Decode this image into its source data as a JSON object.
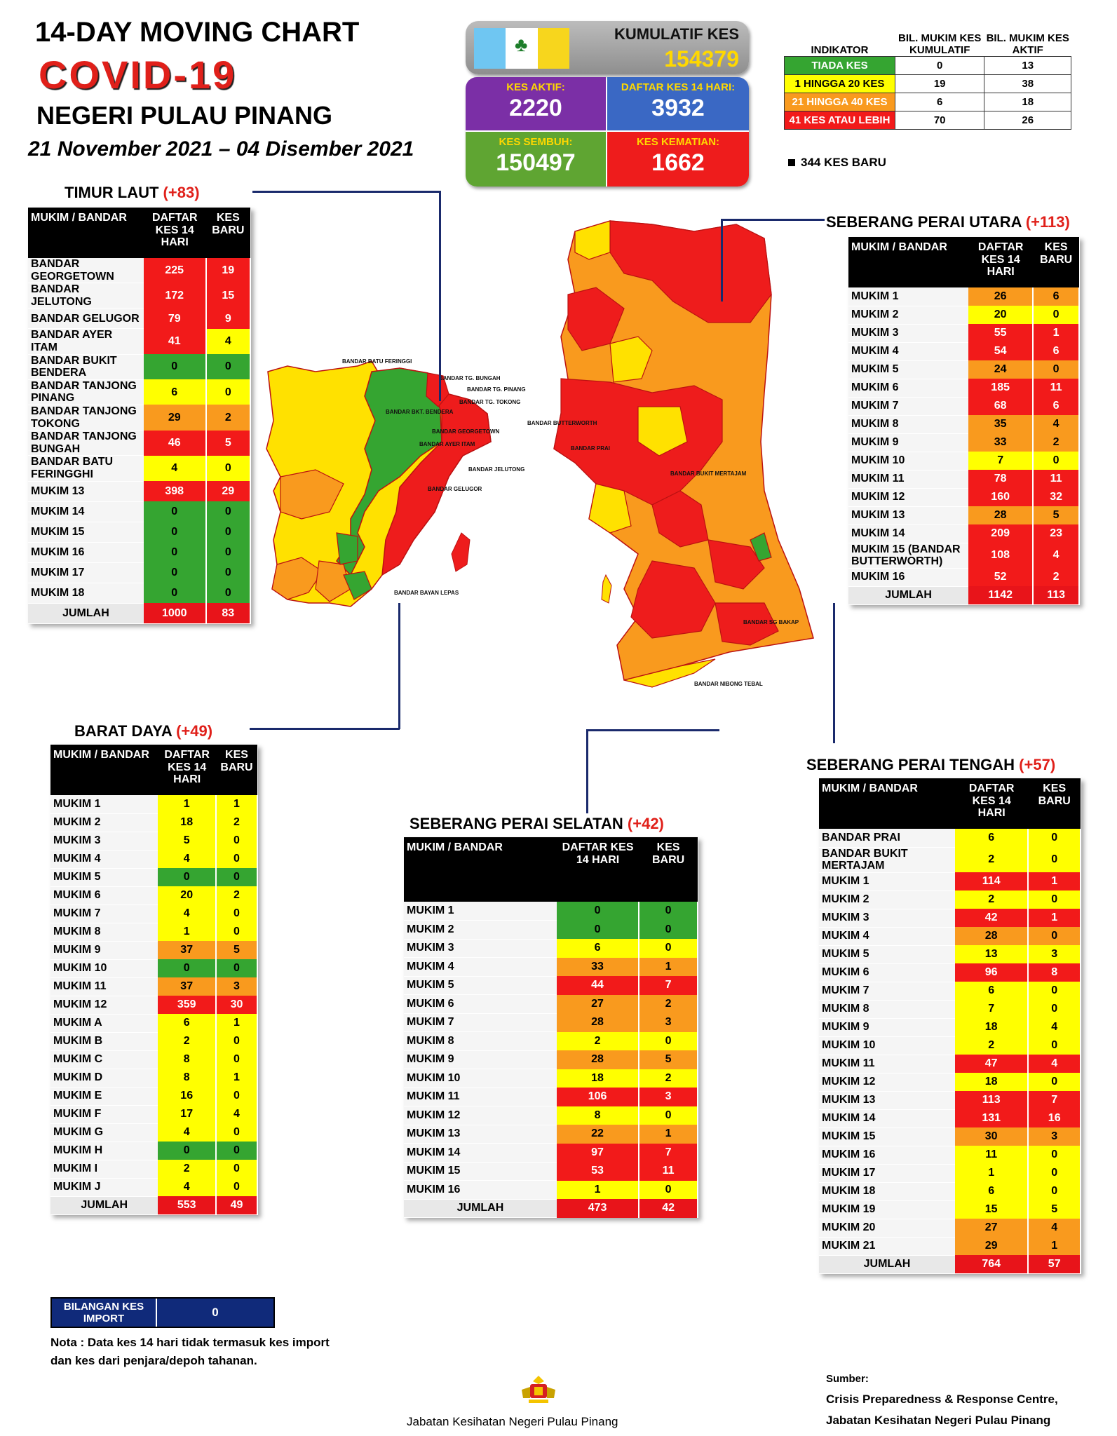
{
  "header": {
    "title": "14-DAY MOVING CHART",
    "covid": "COVID-19",
    "state": "NEGERI PULAU PINANG",
    "date_range": "21 November 2021 – 04 Disember 2021"
  },
  "stats": {
    "kumulatif_label": "KUMULATIF KES",
    "kumulatif_value": "154379",
    "aktif_label": "KES AKTIF:",
    "aktif_value": "2220",
    "daftar_label": "DAFTAR KES 14 HARI:",
    "daftar_value": "3932",
    "sembuh_label": "KES SEMBUH:",
    "sembuh_value": "150497",
    "kematian_label": "KES KEMATIAN:",
    "kematian_value": "1662"
  },
  "legend": {
    "col1": "INDIKATOR",
    "col2": "BIL. MUKIM KES KUMULATIF",
    "col3": "BIL. MUKIM KES AKTIF",
    "rows": [
      {
        "label": "TIADA KES",
        "a": "0",
        "b": "13",
        "color": "#35a531"
      },
      {
        "label": "1 HINGGA 20 KES",
        "a": "19",
        "b": "38",
        "color": "#ffff00"
      },
      {
        "label": "21 HINGGA 40 KES",
        "a": "6",
        "b": "18",
        "color": "#f99a1e"
      },
      {
        "label": "41 KES ATAU LEBIH",
        "a": "70",
        "b": "26",
        "color": "#f21a1a"
      }
    ],
    "new_cases": "344 KES BARU"
  },
  "timur_laut": {
    "title": "TIMUR LAUT",
    "plus": "(+83)",
    "h1": "MUKIM / BANDAR",
    "h2": "DAFTAR KES 14 HARI",
    "h3": "KES BARU",
    "rows": [
      [
        "BANDAR GEORGETOWN",
        "225",
        "19",
        "r",
        "r"
      ],
      [
        "BANDAR JELUTONG",
        "172",
        "15",
        "r",
        "r"
      ],
      [
        "BANDAR GELUGOR",
        "79",
        "9",
        "r",
        "r"
      ],
      [
        "BANDAR AYER ITAM",
        "41",
        "4",
        "r",
        "y"
      ],
      [
        "BANDAR BUKIT BENDERA",
        "0",
        "0",
        "g",
        "g"
      ],
      [
        "BANDAR TANJONG PINANG",
        "6",
        "0",
        "y",
        "y"
      ],
      [
        "BANDAR TANJONG TOKONG",
        "29",
        "2",
        "o",
        "o"
      ],
      [
        "BANDAR TANJONG BUNGAH",
        "46",
        "5",
        "r",
        "r"
      ],
      [
        "BANDAR BATU FERINGGHI",
        "4",
        "0",
        "y",
        "y"
      ],
      [
        "MUKIM 13",
        "398",
        "29",
        "r",
        "r"
      ],
      [
        "MUKIM 14",
        "0",
        "0",
        "g",
        "g"
      ],
      [
        "MUKIM 15",
        "0",
        "0",
        "g",
        "g"
      ],
      [
        "MUKIM 16",
        "0",
        "0",
        "g",
        "g"
      ],
      [
        "MUKIM 17",
        "0",
        "0",
        "g",
        "g"
      ],
      [
        "MUKIM 18",
        "0",
        "0",
        "g",
        "g"
      ]
    ],
    "total_label": "JUMLAH",
    "total_a": "1000",
    "total_b": "83"
  },
  "barat_daya": {
    "title": "BARAT DAYA",
    "plus": "(+49)",
    "h1": "MUKIM / BANDAR",
    "h2": "DAFTAR KES 14 HARI",
    "h3": "KES BARU",
    "rows": [
      [
        "MUKIM 1",
        "1",
        "1",
        "y",
        "y"
      ],
      [
        "MUKIM 2",
        "18",
        "2",
        "y",
        "y"
      ],
      [
        "MUKIM 3",
        "5",
        "0",
        "y",
        "y"
      ],
      [
        "MUKIM 4",
        "4",
        "0",
        "y",
        "y"
      ],
      [
        "MUKIM 5",
        "0",
        "0",
        "g",
        "g"
      ],
      [
        "MUKIM 6",
        "20",
        "2",
        "y",
        "y"
      ],
      [
        "MUKIM 7",
        "4",
        "0",
        "y",
        "y"
      ],
      [
        "MUKIM 8",
        "1",
        "0",
        "y",
        "y"
      ],
      [
        "MUKIM 9",
        "37",
        "5",
        "o",
        "o"
      ],
      [
        "MUKIM 10",
        "0",
        "0",
        "g",
        "g"
      ],
      [
        "MUKIM 11",
        "37",
        "3",
        "o",
        "o"
      ],
      [
        "MUKIM 12",
        "359",
        "30",
        "r",
        "r"
      ],
      [
        "MUKIM A",
        "6",
        "1",
        "y",
        "y"
      ],
      [
        "MUKIM B",
        "2",
        "0",
        "y",
        "y"
      ],
      [
        "MUKIM C",
        "8",
        "0",
        "y",
        "y"
      ],
      [
        "MUKIM D",
        "8",
        "1",
        "y",
        "y"
      ],
      [
        "MUKIM E",
        "16",
        "0",
        "y",
        "y"
      ],
      [
        "MUKIM F",
        "17",
        "4",
        "y",
        "y"
      ],
      [
        "MUKIM G",
        "4",
        "0",
        "y",
        "y"
      ],
      [
        "MUKIM H",
        "0",
        "0",
        "g",
        "g"
      ],
      [
        "MUKIM I",
        "2",
        "0",
        "y",
        "y"
      ],
      [
        "MUKIM J",
        "4",
        "0",
        "y",
        "y"
      ]
    ],
    "total_label": "JUMLAH",
    "total_a": "553",
    "total_b": "49"
  },
  "spu": {
    "title": "SEBERANG PERAI UTARA",
    "plus": "(+113)",
    "h1": "MUKIM / BANDAR",
    "h2": "DAFTAR KES 14 HARI",
    "h3": "KES BARU",
    "rows": [
      [
        "MUKIM 1",
        "26",
        "6",
        "o",
        "o"
      ],
      [
        "MUKIM 2",
        "20",
        "0",
        "y",
        "y"
      ],
      [
        "MUKIM 3",
        "55",
        "1",
        "r",
        "r"
      ],
      [
        "MUKIM 4",
        "54",
        "6",
        "r",
        "r"
      ],
      [
        "MUKIM 5",
        "24",
        "0",
        "o",
        "o"
      ],
      [
        "MUKIM 6",
        "185",
        "11",
        "r",
        "r"
      ],
      [
        "MUKIM 7",
        "68",
        "6",
        "r",
        "r"
      ],
      [
        "MUKIM 8",
        "35",
        "4",
        "o",
        "o"
      ],
      [
        "MUKIM 9",
        "33",
        "2",
        "o",
        "o"
      ],
      [
        "MUKIM 10",
        "7",
        "0",
        "y",
        "y"
      ],
      [
        "MUKIM 11",
        "78",
        "11",
        "r",
        "r"
      ],
      [
        "MUKIM 12",
        "160",
        "32",
        "r",
        "r"
      ],
      [
        "MUKIM 13",
        "28",
        "5",
        "o",
        "o"
      ],
      [
        "MUKIM 14",
        "209",
        "23",
        "r",
        "r"
      ],
      [
        "MUKIM 15 (BANDAR BUTTERWORTH)",
        "108",
        "4",
        "r",
        "r"
      ],
      [
        "MUKIM 16",
        "52",
        "2",
        "r",
        "r"
      ]
    ],
    "total_label": "JUMLAH",
    "total_a": "1142",
    "total_b": "113"
  },
  "sps": {
    "title": "SEBERANG PERAI SELATAN",
    "plus": "(+42)",
    "h1": "MUKIM / BANDAR",
    "h2": "DAFTAR KES 14 HARI",
    "h3": "KES BARU",
    "rows": [
      [
        "MUKIM 1",
        "0",
        "0",
        "g",
        "g"
      ],
      [
        "MUKIM 2",
        "0",
        "0",
        "g",
        "g"
      ],
      [
        "MUKIM 3",
        "6",
        "0",
        "y",
        "y"
      ],
      [
        "MUKIM 4",
        "33",
        "1",
        "o",
        "o"
      ],
      [
        "MUKIM 5",
        "44",
        "7",
        "r",
        "r"
      ],
      [
        "MUKIM 6",
        "27",
        "2",
        "o",
        "o"
      ],
      [
        "MUKIM 7",
        "28",
        "3",
        "o",
        "o"
      ],
      [
        "MUKIM 8",
        "2",
        "0",
        "y",
        "y"
      ],
      [
        "MUKIM 9",
        "28",
        "5",
        "o",
        "o"
      ],
      [
        "MUKIM 10",
        "18",
        "2",
        "y",
        "y"
      ],
      [
        "MUKIM 11",
        "106",
        "3",
        "r",
        "r"
      ],
      [
        "MUKIM 12",
        "8",
        "0",
        "y",
        "y"
      ],
      [
        "MUKIM 13",
        "22",
        "1",
        "o",
        "o"
      ],
      [
        "MUKIM 14",
        "97",
        "7",
        "r",
        "r"
      ],
      [
        "MUKIM 15",
        "53",
        "11",
        "r",
        "r"
      ],
      [
        "MUKIM 16",
        "1",
        "0",
        "y",
        "y"
      ]
    ],
    "total_label": "JUMLAH",
    "total_a": "473",
    "total_b": "42"
  },
  "spt": {
    "title": "SEBERANG PERAI TENGAH",
    "plus": "(+57)",
    "h1": "MUKIM / BANDAR",
    "h2": "DAFTAR KES 14 HARI",
    "h3": "KES BARU",
    "rows": [
      [
        "BANDAR PRAI",
        "6",
        "0",
        "y",
        "y"
      ],
      [
        "BANDAR BUKIT MERTAJAM",
        "2",
        "0",
        "y",
        "y"
      ],
      [
        "MUKIM 1",
        "114",
        "1",
        "r",
        "r"
      ],
      [
        "MUKIM 2",
        "2",
        "0",
        "y",
        "y"
      ],
      [
        "MUKIM 3",
        "42",
        "1",
        "r",
        "r"
      ],
      [
        "MUKIM 4",
        "28",
        "0",
        "o",
        "o"
      ],
      [
        "MUKIM 5",
        "13",
        "3",
        "y",
        "y"
      ],
      [
        "MUKIM 6",
        "96",
        "8",
        "r",
        "r"
      ],
      [
        "MUKIM 7",
        "6",
        "0",
        "y",
        "y"
      ],
      [
        "MUKIM 8",
        "7",
        "0",
        "y",
        "y"
      ],
      [
        "MUKIM 9",
        "18",
        "4",
        "y",
        "y"
      ],
      [
        "MUKIM 10",
        "2",
        "0",
        "y",
        "y"
      ],
      [
        "MUKIM 11",
        "47",
        "4",
        "r",
        "r"
      ],
      [
        "MUKIM 12",
        "18",
        "0",
        "y",
        "y"
      ],
      [
        "MUKIM 13",
        "113",
        "7",
        "r",
        "r"
      ],
      [
        "MUKIM 14",
        "131",
        "16",
        "r",
        "r"
      ],
      [
        "MUKIM 15",
        "30",
        "3",
        "o",
        "o"
      ],
      [
        "MUKIM 16",
        "11",
        "0",
        "y",
        "y"
      ],
      [
        "MUKIM 17",
        "1",
        "0",
        "y",
        "y"
      ],
      [
        "MUKIM 18",
        "6",
        "0",
        "y",
        "y"
      ],
      [
        "MUKIM 19",
        "15",
        "5",
        "y",
        "y"
      ],
      [
        "MUKIM 20",
        "27",
        "4",
        "o",
        "o"
      ],
      [
        "MUKIM 21",
        "29",
        "1",
        "o",
        "o"
      ]
    ],
    "total_label": "JUMLAH",
    "total_a": "764",
    "total_b": "57"
  },
  "import": {
    "label": "BILANGAN KES IMPORT",
    "value": "0"
  },
  "note": "Nota : Data kes 14 hari tidak termasuk kes import dan kes dari penjara/depoh tahanan.",
  "footer": {
    "dept": "Jabatan Kesihatan Negeri Pulau Pinang",
    "source_label": "Sumber:",
    "source1": "Crisis Preparedness & Response Centre,",
    "source2": "Jabatan Kesihatan Negeri Pulau Pinang"
  },
  "map_labels": {
    "batu_feringgi": "BANDAR BATU FERINGGI",
    "tg_bungah": "BANDAR TG. BUNGAH",
    "tg_pinang": "BANDAR TG. PINANG",
    "tg_tokong": "BANDAR TG. TOKONG",
    "bkt_bendera": "BANDAR BKT. BENDERA",
    "georgetown": "BANDAR GEORGETOWN",
    "ayer_itam": "BANDAR AYER ITAM",
    "jelutong": "BANDAR JELUTONG",
    "gelugor": "BANDAR GELUGOR",
    "butterworth": "BANDAR BUTTERWORTH",
    "prai": "BANDAR PRAI",
    "bkt_mertajam": "BANDAR BUKIT MERTAJAM",
    "sg_bakap": "BANDAR SG BAKAP",
    "nibong_tebal": "BANDAR NIBONG TEBAL",
    "bayan_lepas": "BANDAR BAYAN LEPAS"
  }
}
